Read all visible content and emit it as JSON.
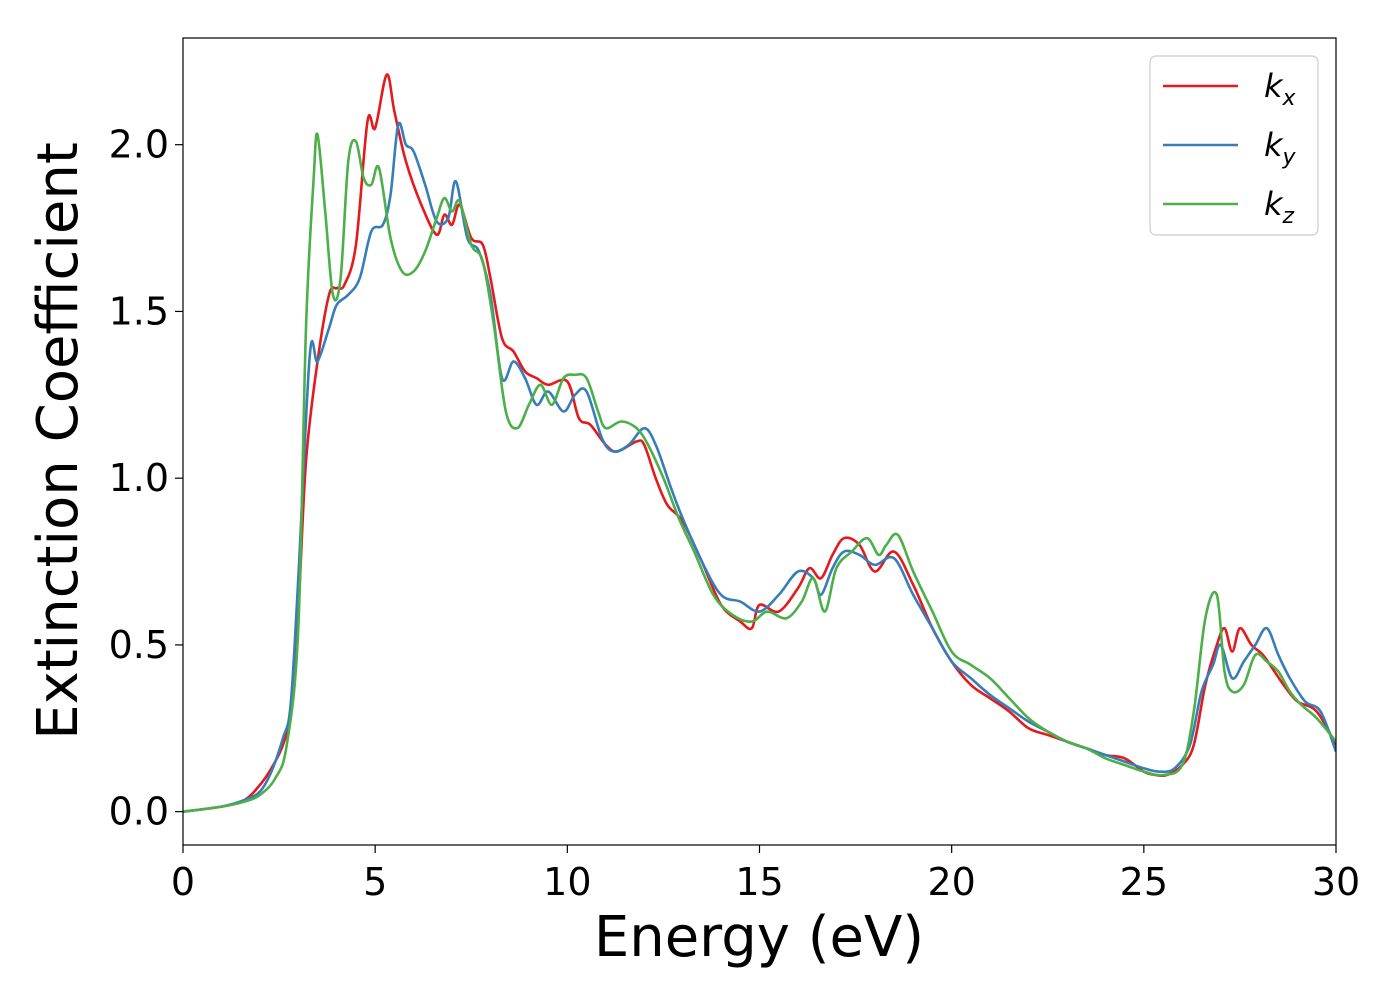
{
  "chart_data": {
    "type": "line",
    "xlabel": "Energy (eV)",
    "ylabel": "Extinction Coefficient",
    "xlim": [
      0,
      30
    ],
    "ylim": [
      -0.1,
      2.32
    ],
    "xticks": [
      0,
      5,
      10,
      15,
      20,
      25,
      30
    ],
    "xtick_labels": [
      "0",
      "5",
      "10",
      "15",
      "20",
      "25",
      "30"
    ],
    "yticks": [
      0.0,
      0.5,
      1.0,
      1.5,
      2.0
    ],
    "ytick_labels": [
      "0.0",
      "0.5",
      "1.0",
      "1.5",
      "2.0"
    ],
    "grid": false,
    "legend_position": "top-right",
    "series": [
      {
        "name": "k_x",
        "label_main": "k",
        "label_sub": "x",
        "color": "#e41a1c",
        "x": [
          0,
          1.0,
          1.6,
          2.0,
          2.3,
          2.6,
          2.8,
          3.0,
          3.2,
          3.5,
          3.8,
          4.0,
          4.2,
          4.5,
          4.8,
          5.0,
          5.3,
          5.5,
          5.8,
          6.2,
          6.6,
          6.8,
          7.0,
          7.2,
          7.5,
          7.8,
          8.0,
          8.3,
          8.6,
          8.9,
          9.2,
          9.5,
          10.0,
          10.3,
          10.6,
          11.0,
          11.3,
          11.8,
          12.0,
          12.3,
          12.6,
          13.0,
          13.5,
          14.0,
          14.5,
          14.8,
          15.0,
          15.5,
          16.0,
          16.3,
          16.6,
          16.9,
          17.2,
          17.6,
          18.0,
          18.5,
          19.0,
          19.5,
          20.0,
          20.5,
          21.0,
          21.5,
          22.0,
          22.5,
          23.0,
          23.5,
          24.0,
          24.5,
          25.0,
          25.3,
          25.6,
          26.0,
          26.3,
          26.6,
          26.9,
          27.1,
          27.3,
          27.5,
          27.8,
          28.1,
          28.4,
          28.7,
          29.0,
          29.5,
          30.0
        ],
        "values": [
          0.0,
          0.015,
          0.035,
          0.08,
          0.13,
          0.2,
          0.3,
          0.6,
          1.05,
          1.35,
          1.55,
          1.57,
          1.58,
          1.7,
          2.07,
          2.05,
          2.21,
          2.1,
          1.95,
          1.82,
          1.73,
          1.79,
          1.76,
          1.82,
          1.72,
          1.7,
          1.6,
          1.42,
          1.38,
          1.32,
          1.3,
          1.28,
          1.29,
          1.18,
          1.16,
          1.1,
          1.08,
          1.11,
          1.1,
          1.0,
          0.92,
          0.87,
          0.75,
          0.62,
          0.57,
          0.55,
          0.62,
          0.6,
          0.67,
          0.73,
          0.7,
          0.77,
          0.82,
          0.8,
          0.72,
          0.78,
          0.68,
          0.55,
          0.45,
          0.38,
          0.34,
          0.3,
          0.25,
          0.23,
          0.21,
          0.19,
          0.17,
          0.16,
          0.12,
          0.11,
          0.11,
          0.14,
          0.2,
          0.38,
          0.5,
          0.55,
          0.48,
          0.55,
          0.5,
          0.47,
          0.42,
          0.37,
          0.33,
          0.3,
          0.2
        ]
      },
      {
        "name": "k_y",
        "label_main": "k",
        "label_sub": "y",
        "color": "#377eb8",
        "x": [
          0,
          1.0,
          1.6,
          2.0,
          2.3,
          2.6,
          2.8,
          3.0,
          3.3,
          3.5,
          3.8,
          4.0,
          4.3,
          4.6,
          4.9,
          5.2,
          5.4,
          5.6,
          5.8,
          6.0,
          6.3,
          6.6,
          6.9,
          7.1,
          7.4,
          7.7,
          8.0,
          8.3,
          8.6,
          8.9,
          9.2,
          9.5,
          9.9,
          10.2,
          10.5,
          10.9,
          11.2,
          11.6,
          12.0,
          12.3,
          12.7,
          13.0,
          13.5,
          14.0,
          14.5,
          15.0,
          15.5,
          16.0,
          16.4,
          16.6,
          16.9,
          17.2,
          17.6,
          18.0,
          18.5,
          19.0,
          19.5,
          20.0,
          20.5,
          21.0,
          21.5,
          22.0,
          22.5,
          23.0,
          23.5,
          24.0,
          24.5,
          25.0,
          25.4,
          25.8,
          26.2,
          26.5,
          26.8,
          27.0,
          27.3,
          27.6,
          27.9,
          28.2,
          28.5,
          28.8,
          29.2,
          29.6,
          30.0
        ],
        "values": [
          0.0,
          0.015,
          0.035,
          0.06,
          0.12,
          0.22,
          0.32,
          0.7,
          1.37,
          1.35,
          1.45,
          1.52,
          1.55,
          1.6,
          1.74,
          1.76,
          1.85,
          2.06,
          2.0,
          1.98,
          1.88,
          1.77,
          1.78,
          1.89,
          1.72,
          1.68,
          1.55,
          1.3,
          1.35,
          1.3,
          1.22,
          1.26,
          1.2,
          1.25,
          1.26,
          1.12,
          1.08,
          1.1,
          1.15,
          1.1,
          0.97,
          0.88,
          0.75,
          0.65,
          0.63,
          0.6,
          0.65,
          0.72,
          0.7,
          0.65,
          0.73,
          0.78,
          0.77,
          0.74,
          0.76,
          0.65,
          0.55,
          0.45,
          0.4,
          0.35,
          0.31,
          0.27,
          0.24,
          0.21,
          0.19,
          0.17,
          0.15,
          0.13,
          0.12,
          0.13,
          0.2,
          0.36,
          0.44,
          0.5,
          0.4,
          0.45,
          0.5,
          0.55,
          0.47,
          0.4,
          0.33,
          0.3,
          0.18
        ]
      },
      {
        "name": "k_z",
        "label_main": "k",
        "label_sub": "z",
        "color": "#4daf4a",
        "x": [
          0,
          1.0,
          1.6,
          2.0,
          2.4,
          2.7,
          3.0,
          3.2,
          3.4,
          3.5,
          3.7,
          3.9,
          4.1,
          4.3,
          4.5,
          4.7,
          4.9,
          5.1,
          5.4,
          5.7,
          6.0,
          6.3,
          6.6,
          6.8,
          7.0,
          7.2,
          7.5,
          7.8,
          8.1,
          8.4,
          8.7,
          9.0,
          9.3,
          9.6,
          9.9,
          10.2,
          10.5,
          10.8,
          11.0,
          11.4,
          11.8,
          12.1,
          12.5,
          12.9,
          13.3,
          13.8,
          14.3,
          14.8,
          15.2,
          15.7,
          16.1,
          16.4,
          16.7,
          17.0,
          17.4,
          17.8,
          18.1,
          18.3,
          18.6,
          19.0,
          19.5,
          20.0,
          20.5,
          21.0,
          21.5,
          22.0,
          22.5,
          23.0,
          23.5,
          24.0,
          24.5,
          25.0,
          25.5,
          26.0,
          26.3,
          26.6,
          26.9,
          27.1,
          27.3,
          27.6,
          27.9,
          28.2,
          28.5,
          28.8,
          29.1,
          29.5,
          30.0
        ],
        "values": [
          0.0,
          0.015,
          0.03,
          0.05,
          0.1,
          0.2,
          0.55,
          1.45,
          1.9,
          2.03,
          1.8,
          1.55,
          1.6,
          1.95,
          2.01,
          1.9,
          1.88,
          1.93,
          1.72,
          1.62,
          1.62,
          1.68,
          1.78,
          1.84,
          1.8,
          1.83,
          1.7,
          1.65,
          1.45,
          1.2,
          1.15,
          1.22,
          1.28,
          1.22,
          1.3,
          1.31,
          1.3,
          1.2,
          1.15,
          1.17,
          1.15,
          1.1,
          1.0,
          0.88,
          0.78,
          0.65,
          0.59,
          0.57,
          0.6,
          0.58,
          0.63,
          0.7,
          0.6,
          0.73,
          0.78,
          0.82,
          0.77,
          0.8,
          0.83,
          0.72,
          0.6,
          0.48,
          0.44,
          0.4,
          0.34,
          0.28,
          0.24,
          0.21,
          0.19,
          0.16,
          0.14,
          0.12,
          0.11,
          0.14,
          0.3,
          0.58,
          0.65,
          0.42,
          0.36,
          0.38,
          0.47,
          0.45,
          0.42,
          0.36,
          0.32,
          0.28,
          0.21
        ]
      }
    ]
  }
}
